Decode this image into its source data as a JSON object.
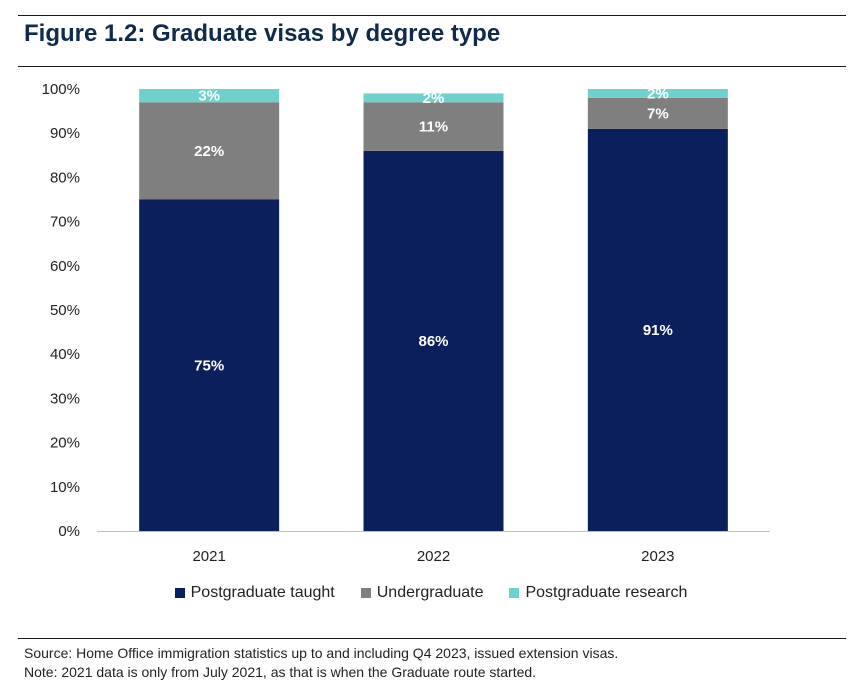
{
  "figure": {
    "title": "Figure 1.2: Graduate visas by degree type"
  },
  "chart_data": {
    "type": "bar",
    "stacked": true,
    "categories": [
      "2021",
      "2022",
      "2023"
    ],
    "series": [
      {
        "name": "Postgraduate taught",
        "values": [
          75,
          86,
          91
        ],
        "labels": [
          "75%",
          "86%",
          "91%"
        ],
        "color": "#0a1f5c"
      },
      {
        "name": "Undergraduate",
        "values": [
          22,
          11,
          7
        ],
        "labels": [
          "22%",
          "11%",
          "7%"
        ],
        "color": "#7f7f7f"
      },
      {
        "name": "Postgraduate research",
        "values": [
          3,
          2,
          2
        ],
        "labels": [
          "3%",
          "2%",
          "2%"
        ],
        "color": "#6fd0cc"
      }
    ],
    "ylim": [
      0,
      100
    ],
    "yticks": [
      "0%",
      "10%",
      "20%",
      "30%",
      "40%",
      "50%",
      "60%",
      "70%",
      "80%",
      "90%",
      "100%"
    ],
    "grid": false,
    "legend_position": "bottom"
  },
  "notes": {
    "source": "Source: Home Office immigration statistics up to and including Q4 2023, issued extension visas.",
    "note": "Note: 2021 data is only from July 2021, as that is when the Graduate route started."
  }
}
